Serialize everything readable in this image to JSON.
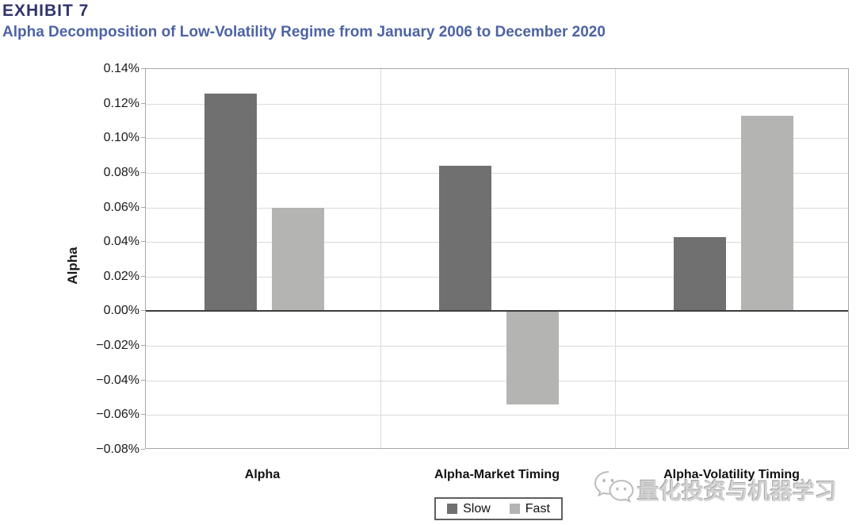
{
  "header": {
    "exhibit_label": "EXHIBIT 7",
    "title": "Alpha Decomposition of Low-Volatility Regime from January 2006 to December 2020"
  },
  "chart_data": {
    "type": "bar",
    "title": "Alpha Decomposition of Low-Volatility Regime from January 2006 to December 2020",
    "categories": [
      "Alpha",
      "Alpha-Market Timing",
      "Alpha-Volatility Timing"
    ],
    "series": [
      {
        "name": "Slow",
        "color": "#707070",
        "values": [
          0.126,
          0.084,
          0.043
        ]
      },
      {
        "name": "Fast",
        "color": "#b4b4b2",
        "values": [
          0.06,
          -0.054,
          0.113
        ]
      }
    ],
    "value_unit": "%",
    "xlabel": "",
    "ylabel": "Alpha",
    "ylim": [
      -0.08,
      0.14
    ],
    "ytick_step": 0.02,
    "ytick_labels": [
      "0.14%",
      "0.12%",
      "0.10%",
      "0.08%",
      "0.06%",
      "0.04%",
      "0.02%",
      "0.00%",
      "−0.02%",
      "−0.04%",
      "−0.06%",
      "−0.08%"
    ],
    "grid": true,
    "legend_position": "bottom-center"
  },
  "legend": {
    "items": [
      {
        "label": "Slow",
        "color": "#707070"
      },
      {
        "label": "Fast",
        "color": "#b4b4b2"
      }
    ]
  },
  "watermark": {
    "icon": "wechat-logo",
    "text": "量化投资与机器学习"
  },
  "colors": {
    "exhibit_label": "#303669",
    "title": "#4d63a5",
    "slow_bar": "#707070",
    "fast_bar": "#b4b4b2",
    "gridline": "#dadada",
    "axis_frame": "#a8a8a8",
    "zero_line": "#3d3d3d",
    "watermark": "#d3d3d3"
  }
}
